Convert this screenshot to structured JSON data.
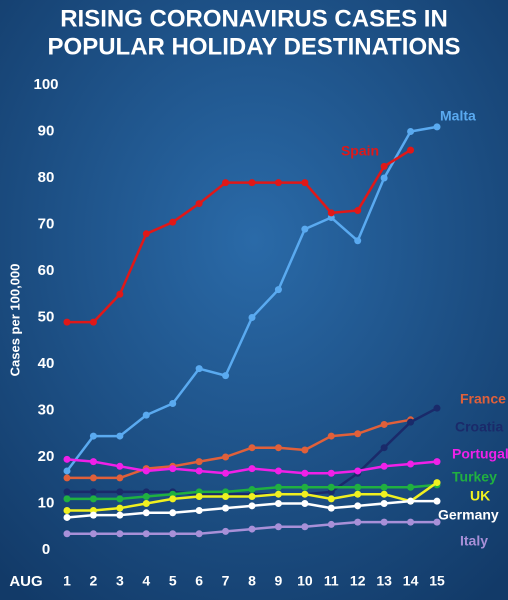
{
  "chart_data": {
    "type": "line",
    "title": [
      "RISING CORONAVIRUS CASES IN",
      "POPULAR HOLIDAY DESTINATIONS"
    ],
    "y_label": "Cases per 100,000",
    "x_label": "AUG",
    "x": [
      1,
      2,
      3,
      4,
      5,
      6,
      7,
      8,
      9,
      10,
      11,
      12,
      13,
      14,
      15
    ],
    "xlim": [
      1,
      15
    ],
    "xticks": [
      1,
      2,
      3,
      4,
      5,
      6,
      7,
      8,
      9,
      10,
      11,
      12,
      13,
      14,
      15
    ],
    "ylim": [
      0,
      100
    ],
    "yticks": [
      0,
      10,
      20,
      30,
      40,
      50,
      60,
      70,
      80,
      90,
      100
    ],
    "grid": false,
    "series": [
      {
        "name": "Malta",
        "color": "#5aaaf0",
        "values": [
          17,
          24.5,
          24.5,
          29,
          31.5,
          39,
          37.5,
          50,
          56,
          69,
          71.5,
          66.5,
          80,
          90,
          91
        ]
      },
      {
        "name": "Spain",
        "color": "#e01818",
        "values": [
          49,
          49,
          55,
          68,
          70.5,
          74.5,
          79,
          79,
          79,
          79,
          72.5,
          73,
          82.5,
          86,
          null
        ]
      },
      {
        "name": "France",
        "color": "#e0603a",
        "values": [
          15.5,
          15.5,
          15.5,
          17.5,
          18,
          19,
          20,
          22,
          22,
          21.5,
          24.5,
          25,
          27,
          28,
          null
        ]
      },
      {
        "name": "Croatia",
        "color": "#1a2a6a",
        "values": [
          12.5,
          12.5,
          12.5,
          12.5,
          12.5,
          12,
          12,
          12,
          12,
          12,
          12.5,
          16.5,
          22,
          27.5,
          30.5
        ]
      },
      {
        "name": "Portugal",
        "color": "#f020e8",
        "values": [
          19.5,
          19,
          18,
          17,
          17.5,
          17,
          16.5,
          17.5,
          17,
          16.5,
          16.5,
          17,
          18,
          18.5,
          19
        ]
      },
      {
        "name": "Turkey",
        "color": "#20b040",
        "values": [
          11,
          11,
          11,
          11.5,
          12,
          12.5,
          12.5,
          13,
          13.5,
          13.5,
          13.5,
          13.5,
          13.5,
          13.5,
          14
        ]
      },
      {
        "name": "UK",
        "color": "#f0f020",
        "values": [
          8.5,
          8.5,
          9,
          10,
          11,
          11.5,
          11.5,
          11.5,
          12,
          12,
          11,
          12,
          12,
          10.5,
          14.5
        ]
      },
      {
        "name": "Germany",
        "color": "#ffffff",
        "values": [
          7,
          7.5,
          7.5,
          8,
          8,
          8.5,
          9,
          9.5,
          10,
          10,
          9,
          9.5,
          10,
          10.5,
          10.5
        ]
      },
      {
        "name": "Italy",
        "color": "#a890d8",
        "values": [
          3.5,
          3.5,
          3.5,
          3.5,
          3.5,
          3.5,
          4,
          4.5,
          5,
          5,
          5.5,
          6,
          6,
          6,
          6
        ]
      }
    ]
  }
}
